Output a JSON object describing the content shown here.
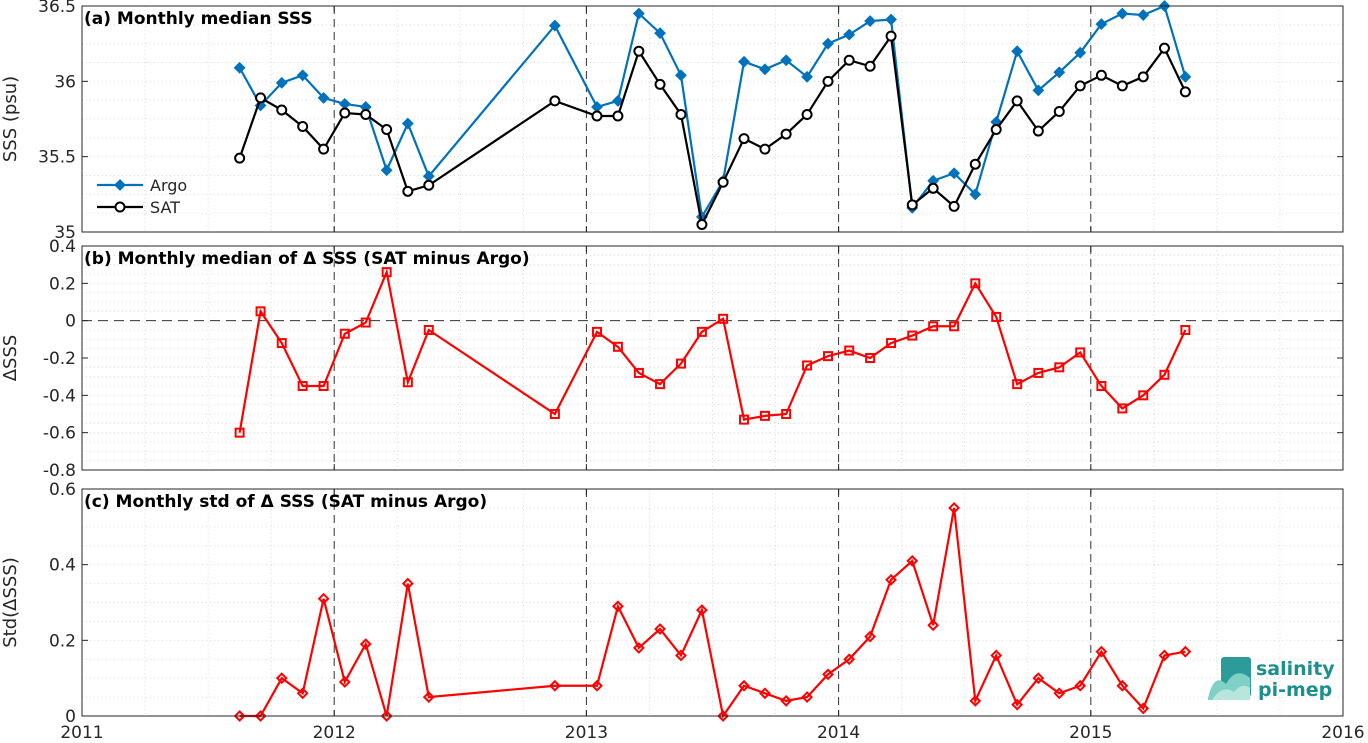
{
  "chart_data": [
    {
      "type": "line",
      "title": "(a) Monthly median SSS",
      "xlabel": "",
      "ylabel": "SSS (psu)",
      "xlim": [
        2011,
        2016
      ],
      "ylim": [
        35,
        36.5
      ],
      "y_ticks": [
        35,
        35.5,
        36,
        36.5
      ],
      "y_tick_labels": [
        "35",
        "35.5",
        "36",
        "36.5"
      ],
      "grid": "dotted minor + dashed yearly verticals",
      "legend": "left-lower",
      "series": [
        {
          "name": "Argo",
          "color": "#0072bd",
          "marker": "diamond",
          "x": [
            2011.625,
            2011.708,
            2011.792,
            2011.875,
            2011.958,
            2012.042,
            2012.125,
            2012.208,
            2012.292,
            2012.375,
            2012.875,
            2013.042,
            2013.125,
            2013.208,
            2013.292,
            2013.375,
            2013.458,
            2013.542,
            2013.625,
            2013.708,
            2013.792,
            2013.875,
            2013.958,
            2014.042,
            2014.125,
            2014.208,
            2014.292,
            2014.375,
            2014.458,
            2014.542,
            2014.625,
            2014.708,
            2014.792,
            2014.875,
            2014.958,
            2015.042,
            2015.125,
            2015.208,
            2015.292,
            2015.375
          ],
          "y": [
            36.09,
            35.84,
            35.99,
            36.04,
            35.89,
            35.85,
            35.83,
            35.41,
            35.72,
            35.37,
            36.37,
            35.83,
            35.87,
            36.45,
            36.32,
            36.04,
            35.1,
            35.34,
            36.13,
            36.08,
            36.14,
            36.03,
            36.25,
            36.31,
            36.4,
            36.41,
            35.16,
            35.34,
            35.39,
            35.25,
            35.73,
            36.2,
            35.94,
            36.06,
            36.19,
            36.38,
            36.45,
            36.44,
            36.5,
            36.03
          ]
        },
        {
          "name": "SAT",
          "color": "#000000",
          "marker": "circle",
          "x": [
            2011.625,
            2011.708,
            2011.792,
            2011.875,
            2011.958,
            2012.042,
            2012.125,
            2012.208,
            2012.292,
            2012.375,
            2012.875,
            2013.042,
            2013.125,
            2013.208,
            2013.292,
            2013.375,
            2013.458,
            2013.542,
            2013.625,
            2013.708,
            2013.792,
            2013.875,
            2013.958,
            2014.042,
            2014.125,
            2014.208,
            2014.292,
            2014.375,
            2014.458,
            2014.542,
            2014.625,
            2014.708,
            2014.792,
            2014.875,
            2014.958,
            2015.042,
            2015.125,
            2015.208,
            2015.292,
            2015.375
          ],
          "y": [
            35.49,
            35.89,
            35.81,
            35.7,
            35.55,
            35.79,
            35.78,
            35.68,
            35.27,
            35.31,
            35.87,
            35.77,
            35.77,
            36.2,
            35.98,
            35.78,
            35.05,
            35.33,
            35.62,
            35.55,
            35.65,
            35.78,
            36.0,
            36.14,
            36.1,
            36.3,
            35.18,
            35.29,
            35.17,
            35.45,
            35.68,
            35.87,
            35.67,
            35.8,
            35.97,
            36.04,
            35.97,
            36.03,
            36.22,
            35.93
          ]
        }
      ]
    },
    {
      "type": "line",
      "title": "(b) Monthly median of Δ SSS (SAT minus Argo)",
      "xlabel": "",
      "ylabel": "ΔSSS",
      "xlim": [
        2011,
        2016
      ],
      "ylim": [
        -0.8,
        0.4
      ],
      "y_ticks": [
        -0.8,
        -0.6,
        -0.4,
        -0.2,
        0,
        0.2,
        0.4
      ],
      "y_tick_labels": [
        "-0.8",
        "-0.6",
        "-0.4",
        "-0.2",
        "0",
        "0.2",
        "0.4"
      ],
      "grid": "dotted minor + dashed yearly verticals + dashed zero line",
      "series": [
        {
          "name": "",
          "color": "#ff0000",
          "marker": "square",
          "x": [
            2011.625,
            2011.708,
            2011.792,
            2011.875,
            2011.958,
            2012.042,
            2012.125,
            2012.208,
            2012.292,
            2012.375,
            2012.875,
            2013.042,
            2013.125,
            2013.208,
            2013.292,
            2013.375,
            2013.458,
            2013.542,
            2013.625,
            2013.708,
            2013.792,
            2013.875,
            2013.958,
            2014.042,
            2014.125,
            2014.208,
            2014.292,
            2014.375,
            2014.458,
            2014.542,
            2014.625,
            2014.708,
            2014.792,
            2014.875,
            2014.958,
            2015.042,
            2015.125,
            2015.208,
            2015.292,
            2015.375
          ],
          "y": [
            -0.6,
            0.05,
            -0.12,
            -0.35,
            -0.35,
            -0.07,
            -0.01,
            0.26,
            -0.33,
            -0.05,
            -0.5,
            -0.06,
            -0.14,
            -0.28,
            -0.34,
            -0.23,
            -0.06,
            0.01,
            -0.53,
            -0.51,
            -0.5,
            -0.24,
            -0.19,
            -0.16,
            -0.2,
            -0.12,
            -0.08,
            -0.03,
            -0.03,
            0.2,
            0.02,
            -0.34,
            -0.28,
            -0.25,
            -0.17,
            -0.35,
            -0.47,
            -0.4,
            -0.29,
            -0.05
          ]
        }
      ]
    },
    {
      "type": "line",
      "title": "(c) Monthly std of Δ SSS (SAT minus Argo)",
      "xlabel": "",
      "ylabel": "Std(ΔSSS)",
      "xlim": [
        2011,
        2016
      ],
      "ylim": [
        0,
        0.6
      ],
      "x_ticks": [
        2011,
        2012,
        2013,
        2014,
        2015,
        2016
      ],
      "x_tick_labels": [
        "2011",
        "2012",
        "2013",
        "2014",
        "2015",
        "2016"
      ],
      "y_ticks": [
        0,
        0.2,
        0.4,
        0.6
      ],
      "y_tick_labels": [
        "0",
        "0.2",
        "0.4",
        "0.6"
      ],
      "grid": "dotted minor + dashed yearly verticals",
      "series": [
        {
          "name": "",
          "color": "#ff0000",
          "marker": "diamond",
          "x": [
            2011.625,
            2011.708,
            2011.792,
            2011.875,
            2011.958,
            2012.042,
            2012.125,
            2012.208,
            2012.292,
            2012.375,
            2012.875,
            2013.042,
            2013.125,
            2013.208,
            2013.292,
            2013.375,
            2013.458,
            2013.542,
            2013.625,
            2013.708,
            2013.792,
            2013.875,
            2013.958,
            2014.042,
            2014.125,
            2014.208,
            2014.292,
            2014.375,
            2014.458,
            2014.542,
            2014.625,
            2014.708,
            2014.792,
            2014.875,
            2014.958,
            2015.042,
            2015.125,
            2015.208,
            2015.292,
            2015.375
          ],
          "y": [
            0.0,
            0.0,
            0.1,
            0.06,
            0.31,
            0.09,
            0.19,
            0.0,
            0.35,
            0.05,
            0.08,
            0.08,
            0.29,
            0.18,
            0.23,
            0.16,
            0.28,
            0.0,
            0.08,
            0.06,
            0.04,
            0.05,
            0.11,
            0.15,
            0.21,
            0.36,
            0.41,
            0.24,
            0.55,
            0.04,
            0.16,
            0.03,
            0.1,
            0.06,
            0.08,
            0.17,
            0.08,
            0.02,
            0.16,
            0.17
          ]
        }
      ]
    }
  ],
  "logo": {
    "line1": "salinity",
    "line2": "pi-mep",
    "color": "#1e8f8f"
  }
}
